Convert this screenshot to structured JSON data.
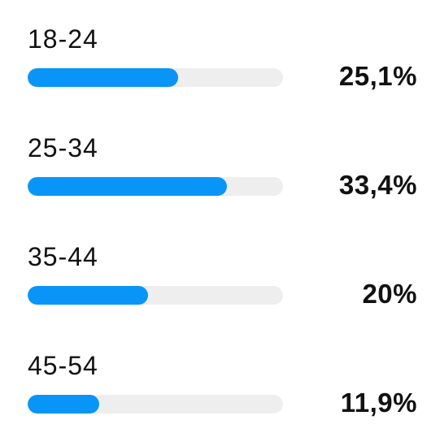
{
  "accent_color": "#0895f7",
  "track_color": "#eeeeee",
  "rows": [
    {
      "label": "18-24",
      "percent_text": "25,1%",
      "bar_fill_fraction": 0.59
    },
    {
      "label": "25-34",
      "percent_text": "33,4%",
      "bar_fill_fraction": 0.78
    },
    {
      "label": "35-44",
      "percent_text": "20%",
      "bar_fill_fraction": 0.47
    },
    {
      "label": "45-54",
      "percent_text": "11,9%",
      "bar_fill_fraction": 0.28
    }
  ]
}
